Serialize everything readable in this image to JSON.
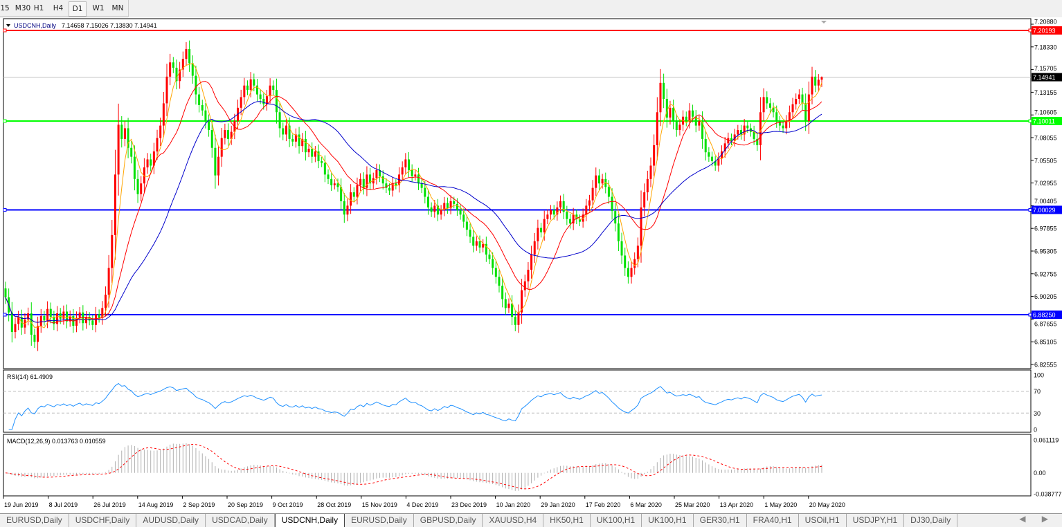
{
  "timeframes": [
    "15",
    "M30",
    "H1",
    "H4",
    "D1",
    "W1",
    "MN"
  ],
  "selected_timeframe": "D1",
  "chart": {
    "header_symbol": "USDCNH,Daily",
    "header_ohlc": "7.14658 7.15026 7.13830 7.14941",
    "rsi_label": "RSI(14) 61.4909",
    "macd_label": "MACD(12,26,9) 0.013763 0.010559"
  },
  "chart_data": {
    "type": "candlestick",
    "symbol": "USDCNH",
    "period": "Daily",
    "last_ohlc": {
      "open": 7.14658,
      "high": 7.15026,
      "low": 7.1383,
      "close": 7.14941
    },
    "price_ticks": [
      "7.20880",
      "7.18330",
      "7.15705",
      "7.13155",
      "7.10605",
      "7.08055",
      "7.05505",
      "7.02955",
      "7.00405",
      "6.97855",
      "6.95305",
      "6.92755",
      "6.90205",
      "6.87655",
      "6.85105",
      "6.82555"
    ],
    "ylim": [
      6.8225,
      7.2155
    ],
    "date_ticks": [
      "19 Jun 2019",
      "8 Jul 2019",
      "26 Jul 2019",
      "14 Aug 2019",
      "2 Sep 2019",
      "20 Sep 2019",
      "9 Oct 2019",
      "28 Oct 2019",
      "15 Nov 2019",
      "4 Dec 2019",
      "23 Dec 2019",
      "10 Jan 2020",
      "29 Jan 2020",
      "17 Feb 2020",
      "6 Mar 2020",
      "25 Mar 2020",
      "13 Apr 2020",
      "1 May 2020",
      "20 May 2020"
    ],
    "closes": [
      6.902,
      6.885,
      6.863,
      6.872,
      6.88,
      6.868,
      6.877,
      6.884,
      6.86,
      6.852,
      6.87,
      6.881,
      6.876,
      6.889,
      6.88,
      6.872,
      6.884,
      6.878,
      6.886,
      6.875,
      6.881,
      6.87,
      6.879,
      6.885,
      6.873,
      6.88,
      6.876,
      6.871,
      6.883,
      6.879,
      6.89,
      6.905,
      6.935,
      6.972,
      7.04,
      7.096,
      7.08,
      7.092,
      7.07,
      7.06,
      7.035,
      7.018,
      7.03,
      7.048,
      7.057,
      7.05,
      7.066,
      7.081,
      7.095,
      7.12,
      7.15,
      7.166,
      7.16,
      7.145,
      7.158,
      7.17,
      7.181,
      7.165,
      7.151,
      7.13,
      7.118,
      7.112,
      7.1,
      7.09,
      7.07,
      7.039,
      7.06,
      7.081,
      7.09,
      7.08,
      7.088,
      7.1,
      7.115,
      7.127,
      7.14,
      7.135,
      7.147,
      7.14,
      7.13,
      7.125,
      7.119,
      7.128,
      7.14,
      7.135,
      7.11,
      7.092,
      7.085,
      7.095,
      7.08,
      7.077,
      7.085,
      7.072,
      7.08,
      7.065,
      7.069,
      7.06,
      7.066,
      7.055,
      7.053,
      7.04,
      7.035,
      7.028,
      7.03,
      7.026,
      7.01,
      6.995,
      7.005,
      7.02,
      7.015,
      7.028,
      7.035,
      7.025,
      7.04,
      7.03,
      7.036,
      7.045,
      7.038,
      7.03,
      7.025,
      7.022,
      7.03,
      7.028,
      7.04,
      7.048,
      7.057,
      7.045,
      7.038,
      7.04,
      7.03,
      7.025,
      7.015,
      7.003,
      6.998,
      7.005,
      6.995,
      7.0,
      7.008,
      7.002,
      7.01,
      7.007,
      7.0,
      6.995,
      6.987,
      6.978,
      6.97,
      6.96,
      6.965,
      6.958,
      6.962,
      6.95,
      6.945,
      6.935,
      6.925,
      6.915,
      6.9,
      6.89,
      6.895,
      6.88,
      6.871,
      6.885,
      6.91,
      6.92,
      6.933,
      6.95,
      6.965,
      6.98,
      6.975,
      6.99,
      6.995,
      7.0,
      6.995,
      7.003,
      7.01,
      6.998,
      6.99,
      6.985,
      6.995,
      6.99,
      6.987,
      6.995,
      7.005,
      7.011,
      7.025,
      7.039,
      7.03,
      7.035,
      7.026,
      7.015,
      6.999,
      6.985,
      6.965,
      6.949,
      6.935,
      6.925,
      6.935,
      6.945,
      6.96,
      7.003,
      7.02,
      7.035,
      7.05,
      7.073,
      7.11,
      7.143,
      7.125,
      7.104,
      7.115,
      7.1,
      7.09,
      7.096,
      7.105,
      7.1,
      7.112,
      7.105,
      7.095,
      7.1,
      7.08,
      7.065,
      7.06,
      7.055,
      7.05,
      7.058,
      7.066,
      7.075,
      7.081,
      7.078,
      7.085,
      7.09,
      7.085,
      7.095,
      7.092,
      7.088,
      7.08,
      7.073,
      7.11,
      7.127,
      7.12,
      7.115,
      7.11,
      7.1,
      7.095,
      7.092,
      7.1,
      7.11,
      7.119,
      7.125,
      7.13,
      7.12,
      7.1,
      7.13,
      7.15,
      7.14,
      7.14658,
      7.14941
    ],
    "hlines": [
      {
        "price": 7.20193,
        "label": "7.20193",
        "color": "#ff0000"
      },
      {
        "price": 7.14941,
        "label": "7.14941",
        "color": "#c0c0c0",
        "label_bg": "#000000"
      },
      {
        "price": 7.10011,
        "label": "7.10011",
        "color": "#00ff00"
      },
      {
        "price": 7.00029,
        "label": "7.00029",
        "color": "#0000ff"
      },
      {
        "price": 6.8825,
        "label": "6.88250",
        "color": "#0000ff"
      }
    ],
    "colors": {
      "up": "#ff0000",
      "down": "#00e000",
      "ma_fast": "#ffa500",
      "ma_mid": "#ff0000",
      "ma_slow": "#0000cc",
      "rsi": "#1e90ff",
      "macd_hist": "#b0b0b0",
      "macd_signal": "#ff0000"
    },
    "rsi": {
      "ticks": [
        "100",
        "70",
        "30",
        "0"
      ],
      "levels": [
        70,
        30
      ]
    },
    "macd": {
      "ticks": [
        "0.061119",
        "0.00",
        "-0.038777"
      ],
      "ylim": [
        -0.038777,
        0.061119
      ]
    }
  },
  "tabs": [
    "EURUSD,Daily",
    "USDCHF,Daily",
    "AUDUSD,Daily",
    "USDCAD,Daily",
    "USDCNH,Daily",
    "EURUSD,Daily",
    "GBPUSD,Daily",
    "XAUUSD,H4",
    "HK50,H1",
    "UK100,H1",
    "UK100,H1",
    "GER30,H1",
    "FRA40,H1",
    "USOil,H1",
    "USDJPY,H1",
    "DJ30,Daily"
  ],
  "selected_tab": 4,
  "tab_scroll": "◀ ▶"
}
